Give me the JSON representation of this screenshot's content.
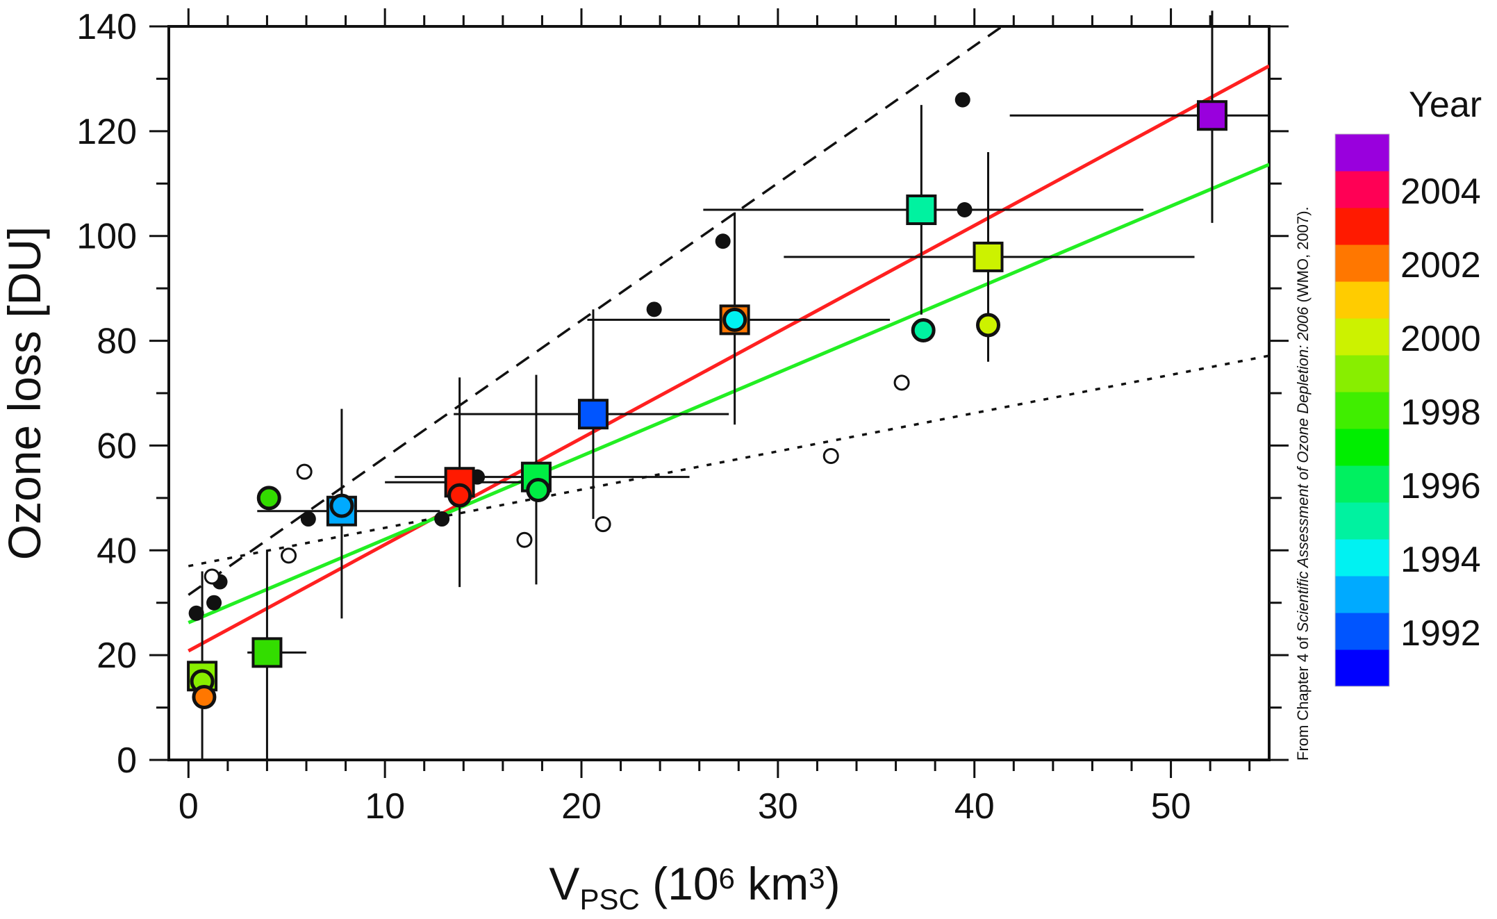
{
  "chart_data": {
    "type": "scatter",
    "xlabel": {
      "main": "V",
      "sub": "PSC",
      "rest1": " (10",
      "sup": "6",
      "rest2": " km",
      "sup2": "3",
      "rest3": ")"
    },
    "ylabel": "Ozone loss [DU]",
    "xlim": [
      -1,
      55
    ],
    "ylim": [
      0,
      140
    ],
    "x_ticks": [
      0,
      10,
      20,
      30,
      40,
      50
    ],
    "y_ticks": [
      0,
      20,
      40,
      60,
      80,
      100,
      120,
      140
    ],
    "grid": false,
    "colorbar": {
      "title": "Year",
      "labels": [
        "2004",
        "2002",
        "2000",
        "1998",
        "1996",
        "1994",
        "1992"
      ],
      "colors": [
        "#0000ff",
        "#0055ff",
        "#00aaff",
        "#00f2f2",
        "#00f2a0",
        "#00f060",
        "#00ee00",
        "#40ee00",
        "#88ee00",
        "#ccf200",
        "#ffcc00",
        "#ff7700",
        "#ff1a00",
        "#ff0055",
        "#9900dd"
      ]
    },
    "series": [
      {
        "marker": "square",
        "points": [
          {
            "x": 0.7,
            "y": 16,
            "year": 1999,
            "color": "#88ee00",
            "xerr": [
              0.7,
              0.7
            ],
            "yerr": [
              0,
              36
            ]
          },
          {
            "x": 4.0,
            "y": 20.5,
            "year": 1998,
            "color": "#33dd00",
            "xerr": [
              3.0,
              6.0
            ],
            "yerr": [
              0,
              40
            ]
          },
          {
            "x": 7.8,
            "y": 47.5,
            "year": 1994,
            "color": "#00aaff",
            "xerr": [
              3.5,
              12.8
            ],
            "yerr": [
              27,
              67
            ]
          },
          {
            "x": 13.8,
            "y": 53,
            "year": 2003,
            "color": "#ff1a00",
            "xerr": [
              10.0,
              17.0
            ],
            "yerr": [
              33,
              73
            ]
          },
          {
            "x": 17.7,
            "y": 54,
            "year": 1997,
            "color": "#00ee44",
            "xerr": [
              10.5,
              25.5
            ],
            "yerr": [
              33.5,
              73.5
            ]
          },
          {
            "x": 20.6,
            "y": 66,
            "year": 1992,
            "color": "#0055ff",
            "xerr": [
              13.5,
              27.5
            ],
            "yerr": [
              46,
              86
            ]
          },
          {
            "x": 27.8,
            "y": 84,
            "year": 2002,
            "color": "#ff7700",
            "xerr": [
              20.3,
              35.7
            ],
            "yerr": [
              64,
              104.5
            ]
          },
          {
            "x": 37.3,
            "y": 105,
            "year": 1996,
            "color": "#00f2a0",
            "xerr": [
              26.2,
              48.6
            ],
            "yerr": [
              85,
              125
            ]
          },
          {
            "x": 40.7,
            "y": 96,
            "year": 2000,
            "color": "#ccf200",
            "xerr": [
              30.3,
              51.2
            ],
            "yerr": [
              76,
              116
            ]
          },
          {
            "x": 52.1,
            "y": 123,
            "year": 2005,
            "color": "#9900dd",
            "xerr": [
              41.8,
              56
            ],
            "yerr": [
              102.5,
              143
            ]
          }
        ]
      },
      {
        "marker": "circle",
        "points": [
          {
            "x": 0.7,
            "y": 15,
            "color": "#88ee00"
          },
          {
            "x": 0.8,
            "y": 12,
            "color": "#ff7700"
          },
          {
            "x": 4.1,
            "y": 50,
            "color": "#33dd00"
          },
          {
            "x": 7.8,
            "y": 48.5,
            "color": "#00aaff"
          },
          {
            "x": 13.8,
            "y": 50.5,
            "color": "#ff1a00"
          },
          {
            "x": 17.8,
            "y": 51.5,
            "color": "#00ee44"
          },
          {
            "x": 27.8,
            "y": 84,
            "color": "#00f2f2"
          },
          {
            "x": 37.4,
            "y": 82,
            "color": "#00f2a0"
          },
          {
            "x": 40.7,
            "y": 83,
            "color": "#ccf200"
          }
        ]
      },
      {
        "marker": "filled-dot",
        "points": [
          {
            "x": 0.4,
            "y": 28
          },
          {
            "x": 1.3,
            "y": 30
          },
          {
            "x": 1.6,
            "y": 34
          },
          {
            "x": 6.1,
            "y": 46
          },
          {
            "x": 12.9,
            "y": 46
          },
          {
            "x": 14.7,
            "y": 54
          },
          {
            "x": 23.7,
            "y": 86
          },
          {
            "x": 27.2,
            "y": 99
          },
          {
            "x": 39.4,
            "y": 126
          },
          {
            "x": 39.5,
            "y": 105
          }
        ]
      },
      {
        "marker": "open-dot",
        "points": [
          {
            "x": 1.2,
            "y": 35
          },
          {
            "x": 5.1,
            "y": 39
          },
          {
            "x": 5.9,
            "y": 55
          },
          {
            "x": 17.1,
            "y": 42
          },
          {
            "x": 21.1,
            "y": 45
          },
          {
            "x": 32.7,
            "y": 58
          },
          {
            "x": 36.3,
            "y": 72
          }
        ]
      }
    ],
    "fit_lines": [
      {
        "style": "solid",
        "color": "#ff2020",
        "intercept": 20.8,
        "slope": 2.03,
        "x_range": [
          0,
          55
        ]
      },
      {
        "style": "solid",
        "color": "#22ee22",
        "intercept": 26.2,
        "slope": 1.59,
        "x_range": [
          0,
          55
        ]
      },
      {
        "style": "dashed",
        "color": "#111111",
        "intercept": 31.5,
        "slope": 2.62,
        "x_range": [
          0,
          55
        ]
      },
      {
        "style": "dotted",
        "color": "#111111",
        "intercept": 37.0,
        "slope": 0.73,
        "x_range": [
          0,
          55
        ]
      }
    ],
    "annotation": {
      "prefix": "From Chapter 4 of ",
      "italic": "Scientific Assessment of Ozone Depletion: 2006",
      "suffix": " (WMO, 2007)."
    }
  }
}
